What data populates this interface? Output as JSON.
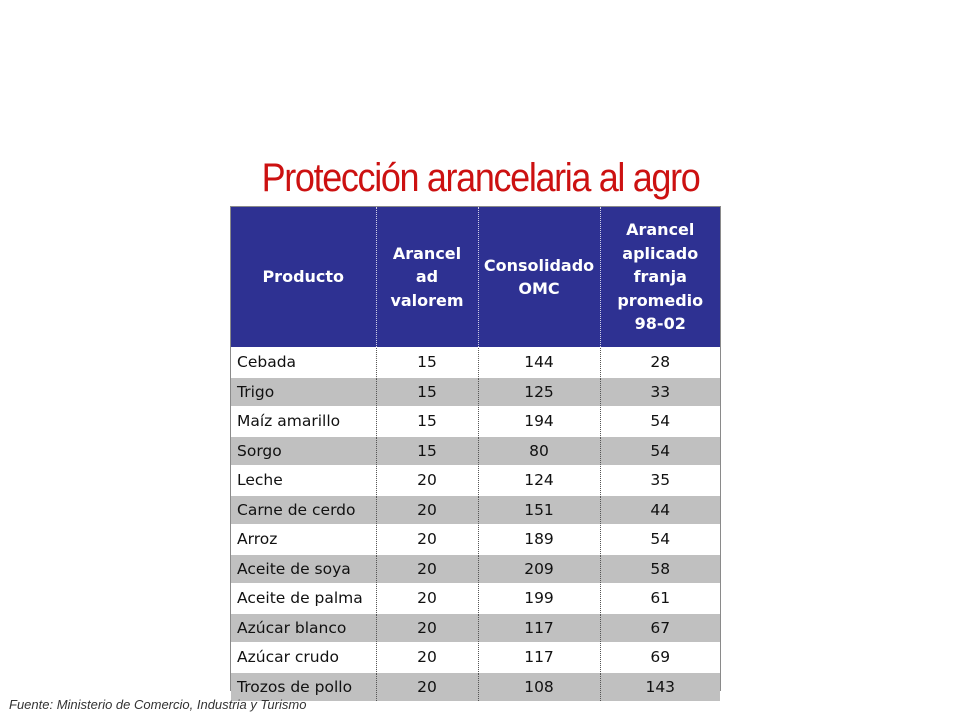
{
  "title": "Protección arancelaria al agro",
  "table": {
    "headers": [
      "Producto",
      "Arancel\nad\nvalorem",
      "Consolidado\nOMC",
      "Arancel\naplicado\nfranja\npromedio\n98-02"
    ],
    "rows": [
      {
        "producto": "Cebada",
        "ad_valorem": "15",
        "consolidado_omc": "144",
        "aplicado": "28"
      },
      {
        "producto": "Trigo",
        "ad_valorem": "15",
        "consolidado_omc": "125",
        "aplicado": "33"
      },
      {
        "producto": "Maíz amarillo",
        "ad_valorem": "15",
        "consolidado_omc": "194",
        "aplicado": "54"
      },
      {
        "producto": "Sorgo",
        "ad_valorem": "15",
        "consolidado_omc": "80",
        "aplicado": "54"
      },
      {
        "producto": "Leche",
        "ad_valorem": "20",
        "consolidado_omc": "124",
        "aplicado": "35"
      },
      {
        "producto": "Carne de cerdo",
        "ad_valorem": "20",
        "consolidado_omc": "151",
        "aplicado": "44"
      },
      {
        "producto": "Arroz",
        "ad_valorem": "20",
        "consolidado_omc": "189",
        "aplicado": "54"
      },
      {
        "producto": "Aceite de soya",
        "ad_valorem": "20",
        "consolidado_omc": "209",
        "aplicado": "58"
      },
      {
        "producto": "Aceite de palma",
        "ad_valorem": "20",
        "consolidado_omc": "199",
        "aplicado": "61"
      },
      {
        "producto": "Azúcar blanco",
        "ad_valorem": "20",
        "consolidado_omc": "117",
        "aplicado": "67"
      },
      {
        "producto": "Azúcar crudo",
        "ad_valorem": "20",
        "consolidado_omc": "117",
        "aplicado": "69"
      },
      {
        "producto": "Trozos de pollo",
        "ad_valorem": "20",
        "consolidado_omc": "108",
        "aplicado": "143"
      }
    ]
  },
  "source": "Fuente: Ministerio de Comercio, Industria y Turismo",
  "colors": {
    "title": "#cc1111",
    "header_background": "#2e3192",
    "header_text": "#ffffff",
    "stripe_gray": "#c0c0c0"
  }
}
